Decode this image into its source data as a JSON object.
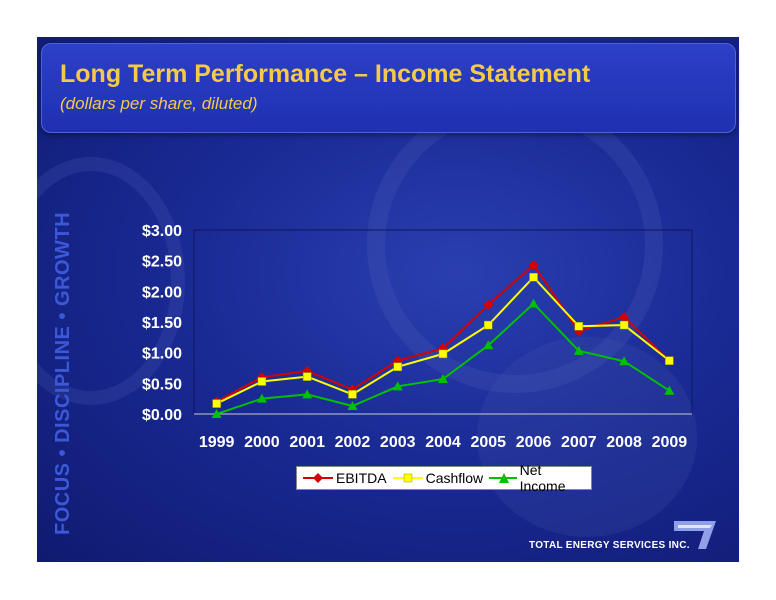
{
  "slide": {
    "title": "Long Term Performance – Income Statement",
    "subtitle": "(dollars per share, diluted)",
    "side_text": "FOCUS • DISCIPLINE • GROWTH",
    "brand": "TOTAL ENERGY SERVICES INC."
  },
  "colors": {
    "ebitda": "#d40000",
    "cashflow": "#ffff00",
    "net_income": "#00c000",
    "title": "#f5c94a"
  },
  "chart_data": {
    "type": "line",
    "x": [
      "1999",
      "2000",
      "2001",
      "2002",
      "2003",
      "2004",
      "2005",
      "2006",
      "2007",
      "2008",
      "2009"
    ],
    "y_ticks": [
      "$0.00",
      "$0.50",
      "$1.00",
      "$1.50",
      "$2.00",
      "$2.50",
      "$3.00"
    ],
    "ylim": [
      0,
      3
    ],
    "legend_position": "bottom",
    "series": [
      {
        "name": "EBITDA",
        "values": [
          0.2,
          0.6,
          0.7,
          0.4,
          0.87,
          1.07,
          1.78,
          2.43,
          1.35,
          1.58,
          0.87
        ]
      },
      {
        "name": "Cashflow",
        "values": [
          0.17,
          0.53,
          0.61,
          0.32,
          0.77,
          0.98,
          1.45,
          2.23,
          1.43,
          1.45,
          0.87
        ]
      },
      {
        "name": "Net Income",
        "values": [
          0.0,
          0.25,
          0.32,
          0.13,
          0.45,
          0.57,
          1.12,
          1.8,
          1.03,
          0.86,
          0.38
        ]
      }
    ]
  }
}
